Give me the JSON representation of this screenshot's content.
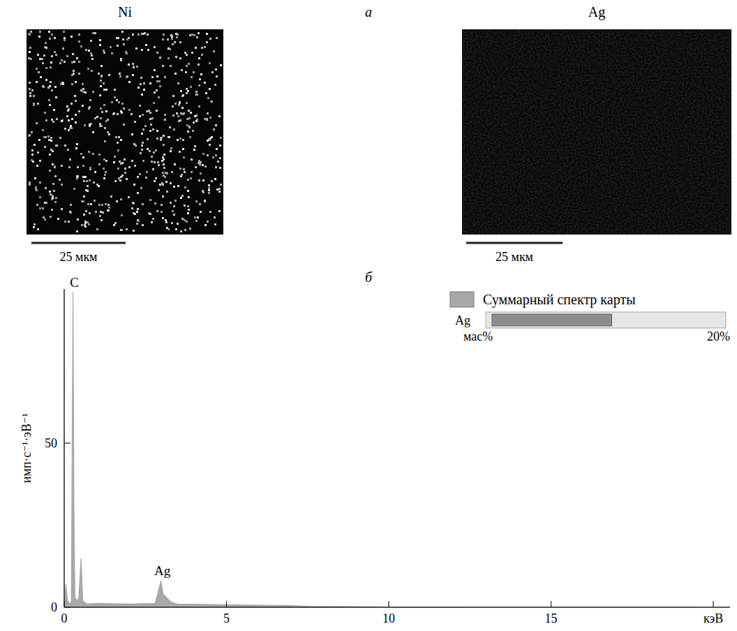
{
  "panel_a": {
    "letter": "а",
    "maps": [
      {
        "element": "Ni",
        "scale_bar": "25 мкм"
      },
      {
        "element": "Ag",
        "scale_bar": "25 мкм"
      }
    ]
  },
  "chart_data": {
    "type": "area",
    "letter": "б",
    "y_label": "имп·с⁻¹·эВ⁻¹",
    "xlim": [
      0,
      20.3
    ],
    "xticks": [
      0,
      5,
      10,
      15,
      {
        "value": 20,
        "label": "кэВ"
      }
    ],
    "ylim": [
      0,
      97
    ],
    "yticks": [
      0,
      50
    ],
    "x": [
      0,
      0.05,
      0.1,
      0.2,
      0.22,
      0.25,
      0.27,
      0.3,
      0.33,
      0.4,
      0.45,
      0.52,
      0.57,
      0.7,
      1,
      2,
      2.8,
      2.98,
      3.05,
      3.15,
      3.3,
      3.5,
      5,
      7,
      7.5,
      10,
      20.3
    ],
    "series": [
      {
        "name": "Суммарный спектр карты",
        "color": "#a8a8a8",
        "values": [
          0,
          7,
          2,
          1,
          2,
          58,
          96,
          30,
          3,
          2,
          3,
          15,
          2,
          1,
          1.2,
          1,
          1.2,
          8,
          4,
          3,
          1.5,
          1,
          0.8,
          0.5,
          0.3,
          0.1,
          0
        ]
      }
    ],
    "legend": "upper right",
    "annotations": [
      {
        "text": "C",
        "x": 0.27,
        "y": 96
      },
      {
        "text": "Ag",
        "x": 2.98,
        "y": 8
      }
    ],
    "inset": {
      "label": "Ag",
      "axis_label": "мас%",
      "value": 10.3,
      "range": [
        0,
        20
      ],
      "ticks": [
        {
          "value": 20,
          "label": "20%"
        }
      ]
    }
  }
}
